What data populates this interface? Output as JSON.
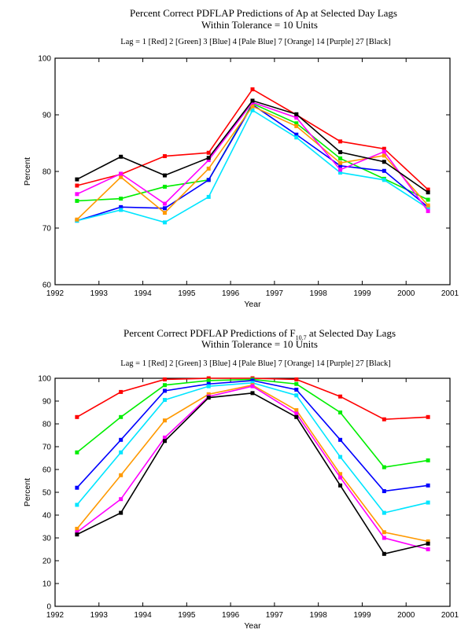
{
  "chart_data": [
    {
      "type": "line",
      "title": "Percent Correct PDFLAP Predictions of Ap at Selected Day Lags",
      "title2": "Within Tolerance = 10 Units",
      "legend_text": "Lag = 1 [Red]  2 [Green]  3 [Blue]  4 [Pale Blue]  7 [Orange]  14 [Purple]  27 [Black]",
      "xlabel": "Year",
      "ylabel": "Percent",
      "xlim": [
        1992,
        2001
      ],
      "ylim": [
        60,
        100
      ],
      "xticks": [
        "1992",
        "1993",
        "1994",
        "1995",
        "1996",
        "1997",
        "1998",
        "1999",
        "2000",
        "2001"
      ],
      "yticks": [
        "60",
        "70",
        "80",
        "90",
        "100"
      ],
      "x": [
        1992.5,
        1993.5,
        1994.5,
        1995.5,
        1996.5,
        1997.5,
        1998.5,
        1999.5,
        2000.5
      ],
      "series": [
        {
          "color": "#ff0000",
          "values": [
            77.5,
            79.5,
            82.7,
            83.3,
            94.5,
            90.0,
            85.3,
            84.0,
            76.8
          ]
        },
        {
          "color": "#00ee00",
          "values": [
            74.8,
            75.2,
            77.3,
            78.5,
            92.0,
            88.5,
            82.3,
            78.7,
            75.0
          ]
        },
        {
          "color": "#0000ff",
          "values": [
            71.3,
            73.7,
            73.5,
            78.5,
            91.8,
            86.5,
            81.0,
            80.1,
            73.7
          ]
        },
        {
          "color": "#00e5ff",
          "values": [
            71.3,
            73.2,
            71.0,
            75.5,
            90.8,
            86.0,
            79.8,
            78.5,
            73.5
          ]
        },
        {
          "color": "#ff9900",
          "values": [
            71.5,
            79.0,
            72.7,
            80.5,
            91.5,
            88.0,
            81.5,
            82.8,
            74.0
          ]
        },
        {
          "color": "#ff00ff",
          "values": [
            76.0,
            79.6,
            74.3,
            82.0,
            92.2,
            89.5,
            80.3,
            83.5,
            73.0
          ]
        },
        {
          "color": "#000000",
          "values": [
            78.6,
            82.6,
            79.3,
            82.4,
            92.5,
            90.1,
            83.4,
            81.7,
            76.3
          ]
        }
      ]
    },
    {
      "type": "line",
      "title": "Percent Correct PDFLAP Predictions of F",
      "title_sub": "10.7",
      "title_rest": " at Selected Day Lags",
      "title2": "Within Tolerance = 10 Units",
      "legend_text": "Lag = 1 [Red]  2 [Green]  3 [Blue]  4 [Pale Blue]  7 [Orange]  14 [Purple]  27 [Black]",
      "xlabel": "Year",
      "ylabel": "Percent",
      "xlim": [
        1992,
        2001
      ],
      "ylim": [
        0,
        100
      ],
      "xticks": [
        "1992",
        "1993",
        "1994",
        "1995",
        "1996",
        "1997",
        "1998",
        "1999",
        "2000",
        "2001"
      ],
      "yticks": [
        "0",
        "10",
        "20",
        "30",
        "40",
        "50",
        "60",
        "70",
        "80",
        "90",
        "100"
      ],
      "x": [
        1992.5,
        1993.5,
        1994.5,
        1995.5,
        1996.5,
        1997.5,
        1998.5,
        1999.5,
        2000.5
      ],
      "series": [
        {
          "color": "#ff0000",
          "values": [
            83,
            94,
            99.5,
            100,
            100,
            99.5,
            92,
            82,
            83
          ]
        },
        {
          "color": "#00ee00",
          "values": [
            67.5,
            83,
            97,
            99,
            99.5,
            97.5,
            85,
            61,
            64
          ]
        },
        {
          "color": "#0000ff",
          "values": [
            52,
            73,
            94.5,
            97.5,
            99,
            95,
            73,
            50.5,
            53
          ]
        },
        {
          "color": "#00e5ff",
          "values": [
            44.5,
            67.5,
            90.5,
            96.5,
            98,
            92.5,
            65.5,
            41,
            45.5
          ]
        },
        {
          "color": "#ff9900",
          "values": [
            34,
            57.5,
            81.5,
            93,
            97,
            86,
            58,
            32.5,
            28.5
          ]
        },
        {
          "color": "#ff00ff",
          "values": [
            32.5,
            47,
            74,
            92,
            96.5,
            84.5,
            56.5,
            30,
            25
          ]
        },
        {
          "color": "#000000",
          "values": [
            31.5,
            41,
            72.5,
            91.5,
            93.5,
            83,
            53,
            23,
            27.5
          ]
        }
      ]
    }
  ]
}
